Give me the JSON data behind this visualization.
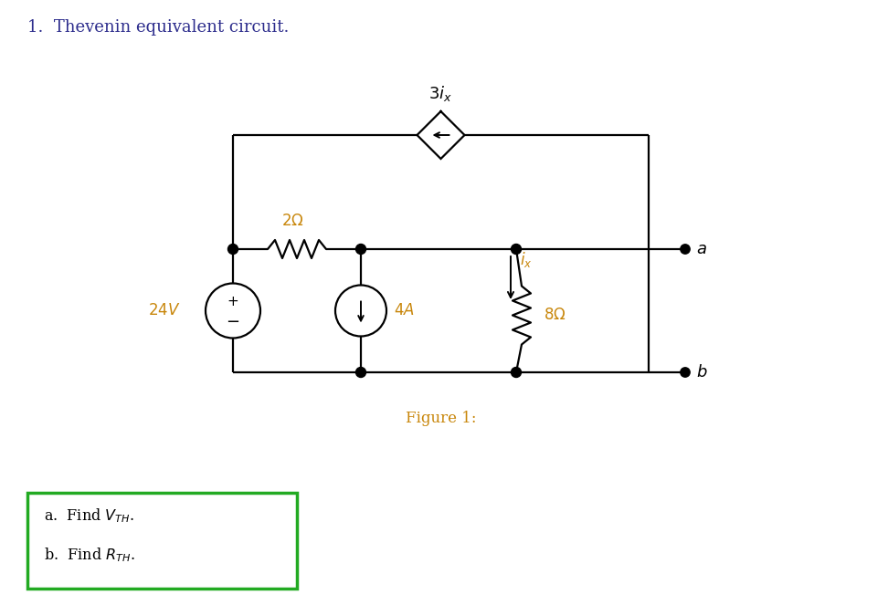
{
  "title": "1.  Thevenin equivalent circuit.",
  "figure_label": "Figure 1:",
  "background_color": "#ffffff",
  "text_color": "#000000",
  "line_color": "#000000",
  "title_color": "#2c2c8c",
  "label_color": "#c8860a",
  "box_color": "#22aa22",
  "figsize": [
    9.72,
    6.63
  ],
  "dpi": 100
}
